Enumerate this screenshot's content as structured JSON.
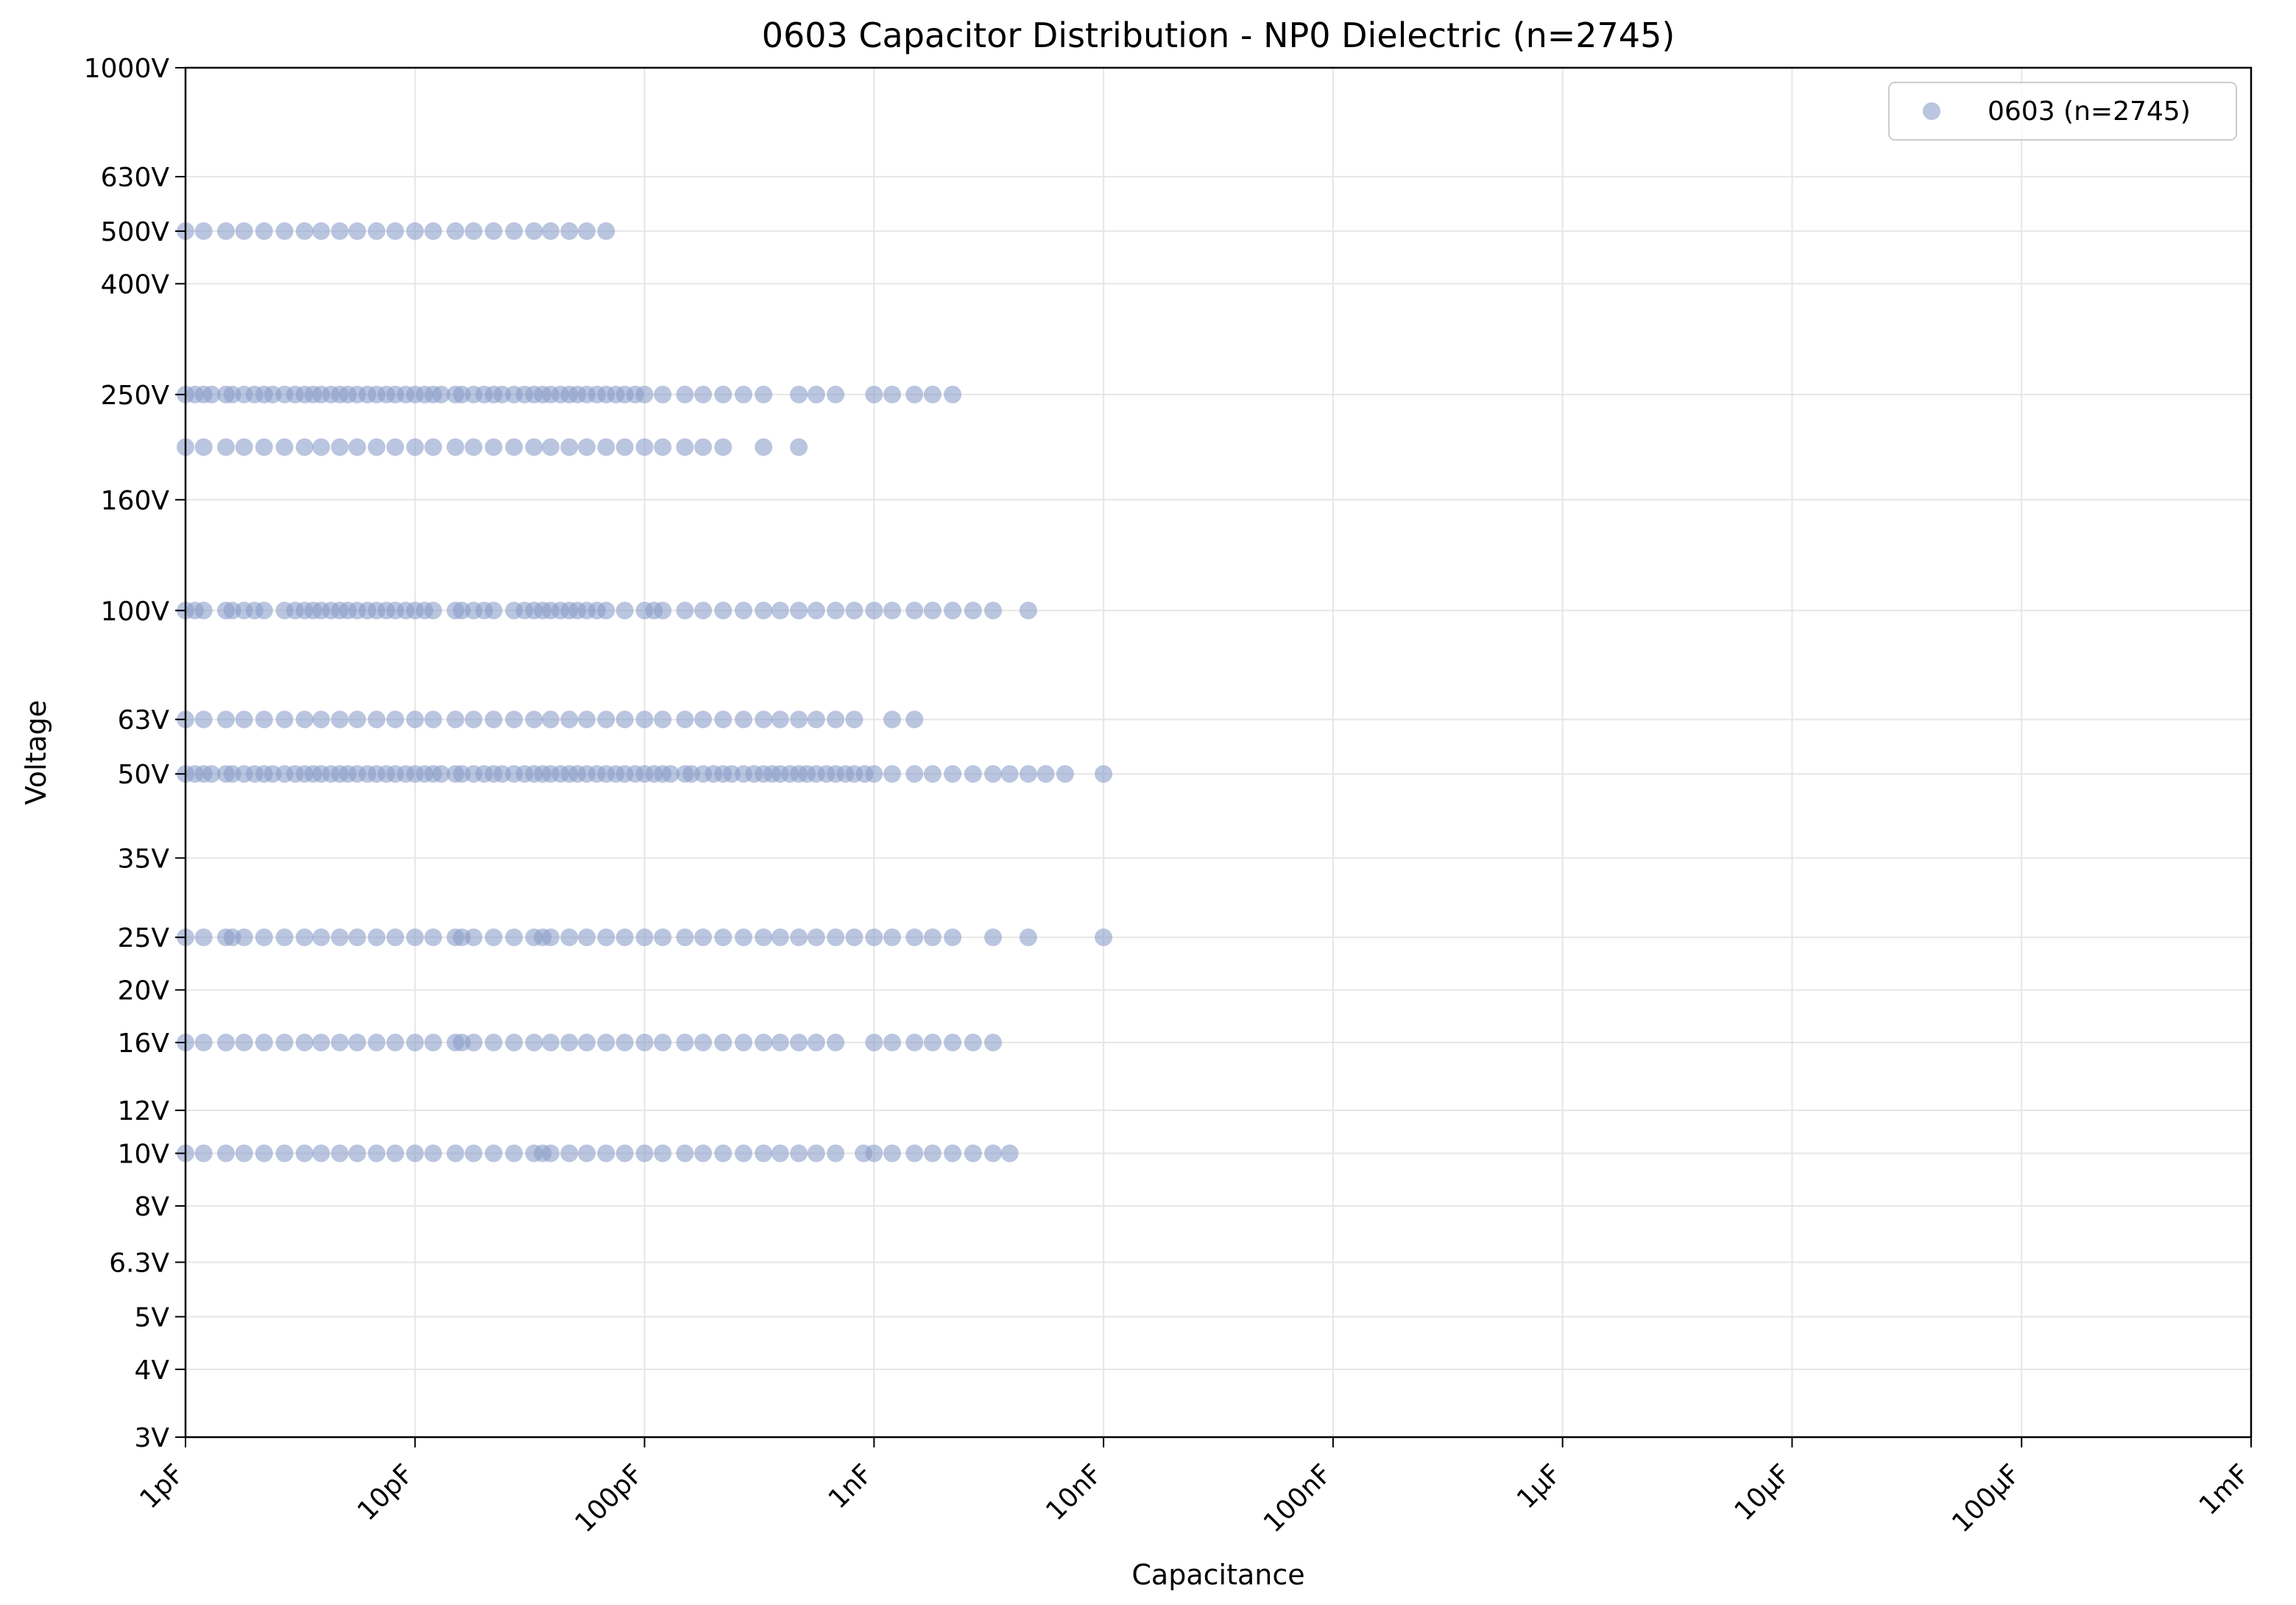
{
  "chart_data": {
    "type": "scatter",
    "title": "0603 Capacitor Distribution - NP0 Dielectric (n=2745)",
    "xlabel": "Capacitance",
    "ylabel": "Voltage",
    "x_scale": "log",
    "y_scale": "log",
    "x_unit": "pF",
    "y_unit": "V",
    "xlim": [
      1,
      1000000000
    ],
    "ylim": [
      3,
      1000
    ],
    "grid": true,
    "legend_position": "top-right",
    "x_ticks": [
      {
        "value": 1,
        "label": "1pF"
      },
      {
        "value": 10,
        "label": "10pF"
      },
      {
        "value": 100,
        "label": "100pF"
      },
      {
        "value": 1000,
        "label": "1nF"
      },
      {
        "value": 10000,
        "label": "10nF"
      },
      {
        "value": 100000,
        "label": "100nF"
      },
      {
        "value": 1000000,
        "label": "1µF"
      },
      {
        "value": 10000000,
        "label": "10µF"
      },
      {
        "value": 100000000,
        "label": "100µF"
      },
      {
        "value": 1000000000,
        "label": "1mF"
      }
    ],
    "y_ticks": [
      {
        "value": 3,
        "label": "3V"
      },
      {
        "value": 4,
        "label": "4V"
      },
      {
        "value": 5,
        "label": "5V"
      },
      {
        "value": 6.3,
        "label": "6.3V"
      },
      {
        "value": 8,
        "label": "8V"
      },
      {
        "value": 10,
        "label": "10V"
      },
      {
        "value": 12,
        "label": "12V"
      },
      {
        "value": 16,
        "label": "16V"
      },
      {
        "value": 20,
        "label": "20V"
      },
      {
        "value": 25,
        "label": "25V"
      },
      {
        "value": 35,
        "label": "35V"
      },
      {
        "value": 50,
        "label": "50V"
      },
      {
        "value": 63,
        "label": "63V"
      },
      {
        "value": 100,
        "label": "100V"
      },
      {
        "value": 160,
        "label": "160V"
      },
      {
        "value": 250,
        "label": "250V"
      },
      {
        "value": 400,
        "label": "400V"
      },
      {
        "value": 500,
        "label": "500V"
      },
      {
        "value": 630,
        "label": "630V"
      },
      {
        "value": 1000,
        "label": "1000V"
      }
    ],
    "series": [
      {
        "name": "0603 (n=2745)",
        "color": "#8c9fca",
        "opacity": 0.6,
        "points_by_voltage": [
          {
            "voltage": 500,
            "capacitance_pF": [
              1,
              1.2,
              1.5,
              1.8,
              2.2,
              2.7,
              3.3,
              3.9,
              4.7,
              5.6,
              6.8,
              8.2,
              10,
              12,
              15,
              18,
              22,
              27,
              33,
              39,
              47,
              56,
              68
            ]
          },
          {
            "voltage": 250,
            "capacitance_pF": [
              1,
              1.1,
              1.2,
              1.3,
              1.5,
              1.6,
              1.8,
              2,
              2.2,
              2.4,
              2.7,
              3,
              3.3,
              3.6,
              3.9,
              4.3,
              4.7,
              5.1,
              5.6,
              6.2,
              6.8,
              7.5,
              8.2,
              9.1,
              10,
              11,
              12,
              13,
              15,
              16,
              18,
              20,
              22,
              24,
              27,
              30,
              33,
              36,
              39,
              43,
              47,
              51,
              56,
              62,
              68,
              75,
              82,
              91,
              100,
              120,
              150,
              180,
              220,
              270,
              330,
              470,
              560,
              680,
              1000,
              1200,
              1500,
              1800,
              2200
            ]
          },
          {
            "voltage": 200,
            "capacitance_pF": [
              1,
              1.2,
              1.5,
              1.8,
              2.2,
              2.7,
              3.3,
              3.9,
              4.7,
              5.6,
              6.8,
              8.2,
              10,
              12,
              15,
              18,
              22,
              27,
              33,
              39,
              47,
              56,
              68,
              82,
              100,
              120,
              150,
              180,
              220,
              330,
              470
            ]
          },
          {
            "voltage": 100,
            "capacitance_pF": [
              1,
              1.1,
              1.2,
              1.5,
              1.6,
              1.8,
              2,
              2.2,
              2.7,
              3,
              3.3,
              3.6,
              3.9,
              4.3,
              4.7,
              5.1,
              5.6,
              6.2,
              6.8,
              7.5,
              8.2,
              9.1,
              10,
              11,
              12,
              15,
              16,
              18,
              20,
              22,
              27,
              30,
              33,
              36,
              39,
              43,
              47,
              51,
              56,
              62,
              68,
              82,
              100,
              110,
              120,
              150,
              180,
              220,
              270,
              330,
              390,
              470,
              560,
              680,
              820,
              1000,
              1200,
              1500,
              1800,
              2200,
              2700,
              3300,
              4700
            ]
          },
          {
            "voltage": 63,
            "capacitance_pF": [
              1,
              1.2,
              1.5,
              1.8,
              2.2,
              2.7,
              3.3,
              3.9,
              4.7,
              5.6,
              6.8,
              8.2,
              10,
              12,
              15,
              18,
              22,
              27,
              33,
              39,
              47,
              56,
              68,
              82,
              100,
              120,
              150,
              180,
              220,
              270,
              330,
              390,
              470,
              560,
              680,
              820,
              1200,
              1500
            ]
          },
          {
            "voltage": 50,
            "capacitance_pF": [
              1,
              1.1,
              1.2,
              1.3,
              1.5,
              1.6,
              1.8,
              2,
              2.2,
              2.4,
              2.7,
              3,
              3.3,
              3.6,
              3.9,
              4.3,
              4.7,
              5.1,
              5.6,
              6.2,
              6.8,
              7.5,
              8.2,
              9.1,
              10,
              11,
              12,
              13,
              15,
              16,
              18,
              20,
              22,
              24,
              27,
              30,
              33,
              36,
              39,
              43,
              47,
              51,
              56,
              62,
              68,
              75,
              82,
              91,
              100,
              110,
              120,
              130,
              150,
              160,
              180,
              200,
              220,
              240,
              270,
              300,
              330,
              360,
              390,
              430,
              470,
              510,
              560,
              620,
              680,
              750,
              820,
              910,
              1000,
              1200,
              1500,
              1800,
              2200,
              2700,
              3300,
              3900,
              4700,
              5600,
              6800,
              10000
            ]
          },
          {
            "voltage": 25,
            "capacitance_pF": [
              1,
              1.2,
              1.5,
              1.6,
              1.8,
              2.2,
              2.7,
              3.3,
              3.9,
              4.7,
              5.6,
              6.8,
              8.2,
              10,
              12,
              15,
              16,
              18,
              22,
              27,
              33,
              36,
              39,
              47,
              56,
              68,
              82,
              100,
              120,
              150,
              180,
              220,
              270,
              330,
              390,
              470,
              560,
              680,
              820,
              1000,
              1200,
              1500,
              1800,
              2200,
              3300,
              4700,
              10000
            ]
          },
          {
            "voltage": 16,
            "capacitance_pF": [
              1,
              1.2,
              1.5,
              1.8,
              2.2,
              2.7,
              3.3,
              3.9,
              4.7,
              5.6,
              6.8,
              8.2,
              10,
              12,
              15,
              16,
              18,
              22,
              27,
              33,
              39,
              47,
              56,
              68,
              82,
              100,
              120,
              150,
              180,
              220,
              270,
              330,
              390,
              470,
              560,
              680,
              1000,
              1200,
              1500,
              1800,
              2200,
              2700,
              3300
            ]
          },
          {
            "voltage": 10,
            "capacitance_pF": [
              1,
              1.2,
              1.5,
              1.8,
              2.2,
              2.7,
              3.3,
              3.9,
              4.7,
              5.6,
              6.8,
              8.2,
              10,
              12,
              15,
              18,
              22,
              27,
              33,
              36,
              39,
              47,
              56,
              68,
              82,
              100,
              120,
              150,
              180,
              220,
              270,
              330,
              390,
              470,
              560,
              680,
              900,
              1000,
              1200,
              1500,
              1800,
              2200,
              2700,
              3300,
              3900
            ]
          }
        ]
      }
    ]
  }
}
